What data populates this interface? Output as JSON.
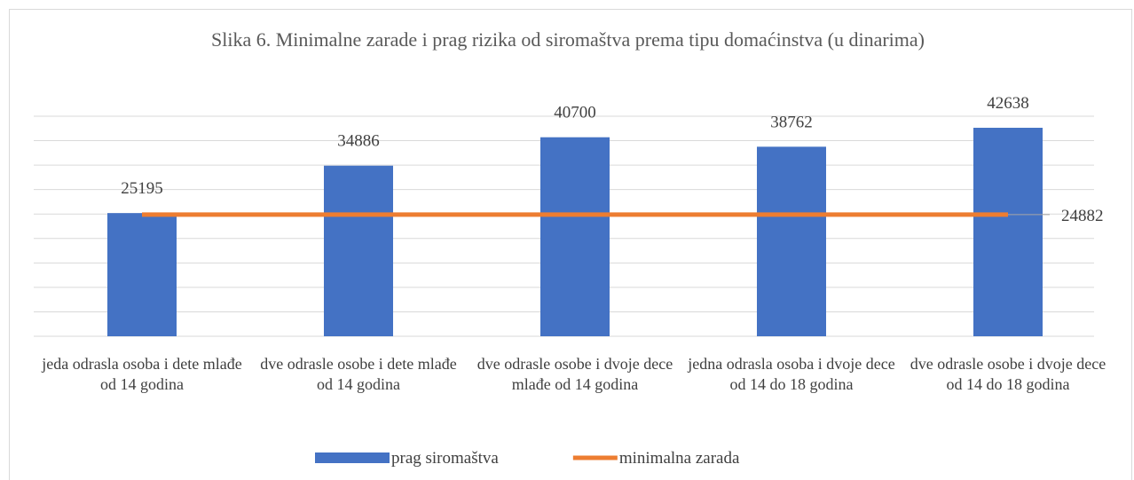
{
  "chart_data": {
    "type": "bar_line",
    "title": "Slika 6. Minimalne zarade i prag rizika od siromaštva prema tipu domaćinstva (u dinarima)",
    "categories": [
      "jeda odrasla osoba i dete mlađe od 14 godina",
      "dve odrasle osobe i dete mlađe od 14 godina",
      "dve odrasle osobe i dvoje dece mlađe od 14 godina",
      "jedna odrasla osoba i dvoje dece od 14 do 18 godina",
      "dve odrasle osobe i dvoje dece od 14 do 18 godina"
    ],
    "series": [
      {
        "name": "prag siromaštva",
        "type": "bar",
        "color": "#4472c4",
        "values": [
          25195,
          34886,
          40700,
          38762,
          42638
        ]
      },
      {
        "name": "minimalna zarada",
        "type": "line",
        "color": "#ed7d31",
        "values": [
          24882,
          24882,
          24882,
          24882,
          24882
        ]
      }
    ],
    "ylim": [
      0,
      45000
    ],
    "yticks": [
      0,
      5000,
      10000,
      15000,
      20000,
      25000,
      30000,
      35000,
      40000,
      45000
    ],
    "grid": true,
    "legend": "bottom"
  }
}
